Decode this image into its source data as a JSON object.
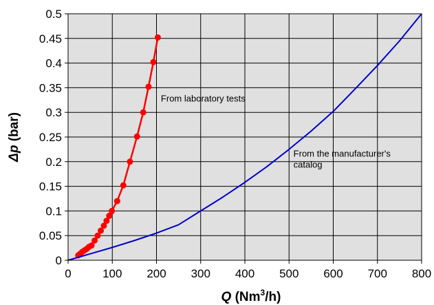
{
  "chart_data": {
    "type": "line",
    "xlabel": {
      "symbol": "Q",
      "prefix": " (Nm",
      "sup": "3",
      "suffix": "/h)"
    },
    "ylabel": {
      "symbol": "Δp",
      "suffix": " (bar)"
    },
    "xlim": [
      0,
      800
    ],
    "ylim": [
      0,
      0.5
    ],
    "xticks": [
      "0",
      "100",
      "200",
      "300",
      "400",
      "500",
      "600",
      "700",
      "800"
    ],
    "yticks": [
      "0",
      "0.05",
      "0.1",
      "0.15",
      "0.2",
      "0.25",
      "0.3",
      "0.35",
      "0.4",
      "0.45",
      "0.5"
    ],
    "grid": true,
    "plot_background": "#e0e0e0",
    "series": [
      {
        "name": "From laboratory tests",
        "color": "#ff0000",
        "marker": "circle",
        "x": [
          23,
          27,
          32,
          37,
          42,
          47,
          53,
          60,
          67,
          74,
          81,
          87,
          93,
          99,
          111,
          125,
          140,
          156,
          170,
          182,
          193,
          203
        ],
        "y": [
          0.01,
          0.013,
          0.017,
          0.02,
          0.023,
          0.027,
          0.03,
          0.04,
          0.05,
          0.06,
          0.07,
          0.08,
          0.09,
          0.1,
          0.12,
          0.152,
          0.2,
          0.251,
          0.3,
          0.352,
          0.402,
          0.452
        ]
      },
      {
        "name": "From the manufacturer's catalog",
        "color": "#0000cc",
        "marker": "none",
        "x": [
          0,
          50,
          100,
          150,
          200,
          250,
          300,
          350,
          400,
          450,
          500,
          550,
          600,
          650,
          700,
          750,
          800
        ],
        "y": [
          0,
          0.013,
          0.026,
          0.04,
          0.055,
          0.072,
          0.1,
          0.128,
          0.158,
          0.19,
          0.225,
          0.262,
          0.302,
          0.348,
          0.395,
          0.445,
          0.5
        ]
      }
    ],
    "annotations": [
      {
        "text": "From laboratory tests",
        "x": 210,
        "y": 0.322
      },
      {
        "lines": [
          "From the manufacturer's",
          "catalog"
        ],
        "x": 510,
        "y": 0.21
      }
    ]
  }
}
